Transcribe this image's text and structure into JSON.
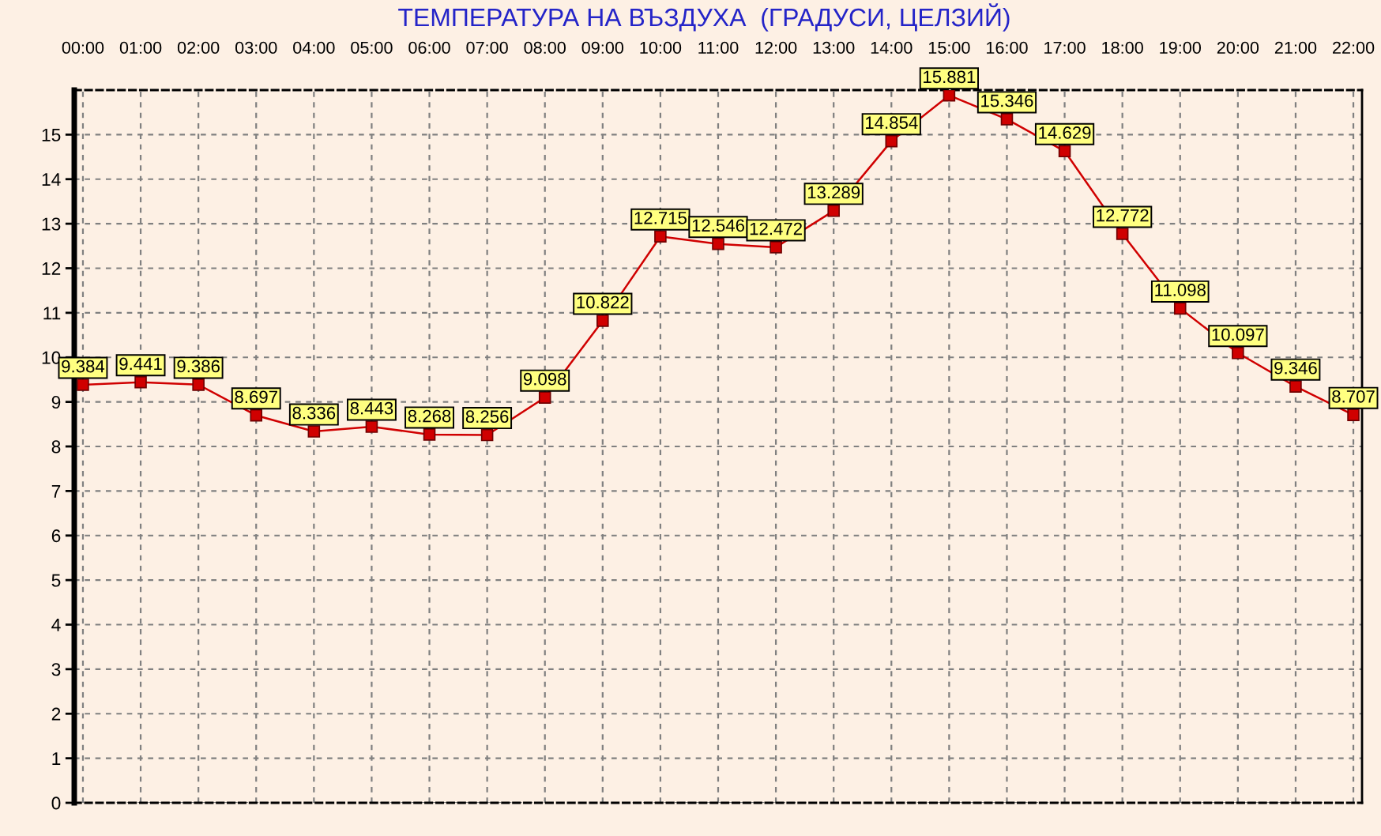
{
  "chart_data": {
    "type": "line",
    "title": "ТЕМПЕРАТУРА НА ВЪЗДУХА  (ГРАДУСИ, ЦЕЛЗИЙ)",
    "categories": [
      "00:00",
      "01:00",
      "02:00",
      "03:00",
      "04:00",
      "05:00",
      "06:00",
      "07:00",
      "08:00",
      "09:00",
      "10:00",
      "11:00",
      "12:00",
      "13:00",
      "14:00",
      "15:00",
      "16:00",
      "17:00",
      "18:00",
      "19:00",
      "20:00",
      "21:00",
      "22:00"
    ],
    "series": [
      {
        "color": "#d00000",
        "values": [
          9.384,
          9.441,
          9.386,
          8.697,
          8.336,
          8.443,
          8.268,
          8.256,
          9.098,
          10.822,
          12.715,
          12.546,
          12.472,
          13.289,
          14.854,
          15.881,
          15.346,
          14.629,
          12.772,
          11.098,
          10.097,
          9.346,
          8.707
        ]
      }
    ],
    "ylim": [
      0,
      16
    ],
    "yticks": [
      0,
      1,
      2,
      3,
      4,
      5,
      6,
      7,
      8,
      9,
      10,
      11,
      12,
      13,
      14,
      15
    ],
    "grid": true,
    "marker": "square",
    "line_style": "solid",
    "data_labels": true
  }
}
